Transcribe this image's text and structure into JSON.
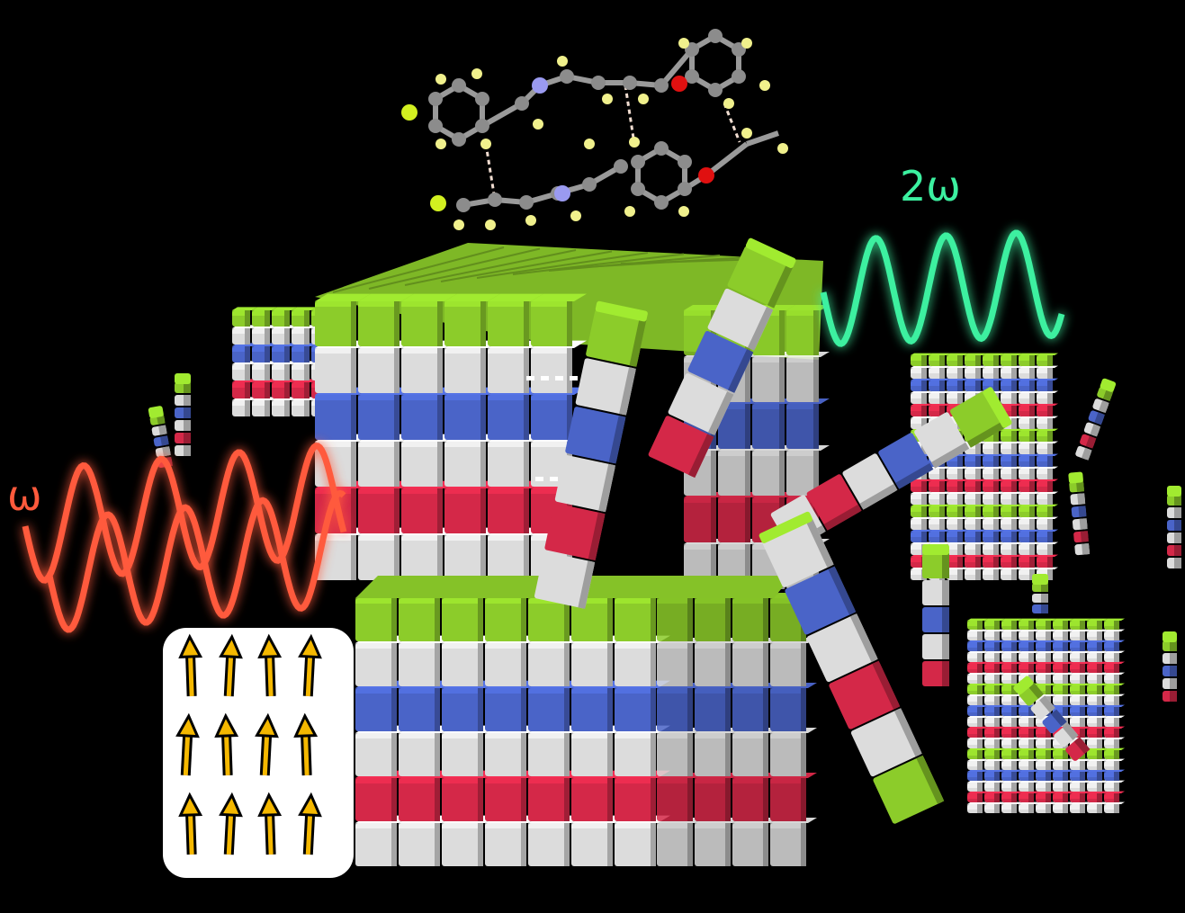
{
  "labels": {
    "fundamental": "ω",
    "second_harmonic": "2ω"
  },
  "colors": {
    "background": "#000000",
    "layer_green": "#8ccc2a",
    "layer_white": "#dcdcdc",
    "layer_blue": "#4a64c8",
    "layer_red": "#d42848",
    "fundamental_wave": "#ff5a3c",
    "second_harmonic_wave": "#3cf0a0",
    "dipole_arrow": "#f5b800",
    "atom_carbon": "#8c8c8c",
    "atom_hydrogen": "#f0f08c",
    "atom_nitrogen": "#9a9af0",
    "atom_oxygen": "#e01010",
    "atom_fluorine": "#d2f020"
  },
  "layer_sequence": [
    "green",
    "white",
    "blue",
    "white",
    "red",
    "white"
  ],
  "dipole_panel": {
    "rows": 3,
    "columns": 4,
    "direction": "up"
  }
}
